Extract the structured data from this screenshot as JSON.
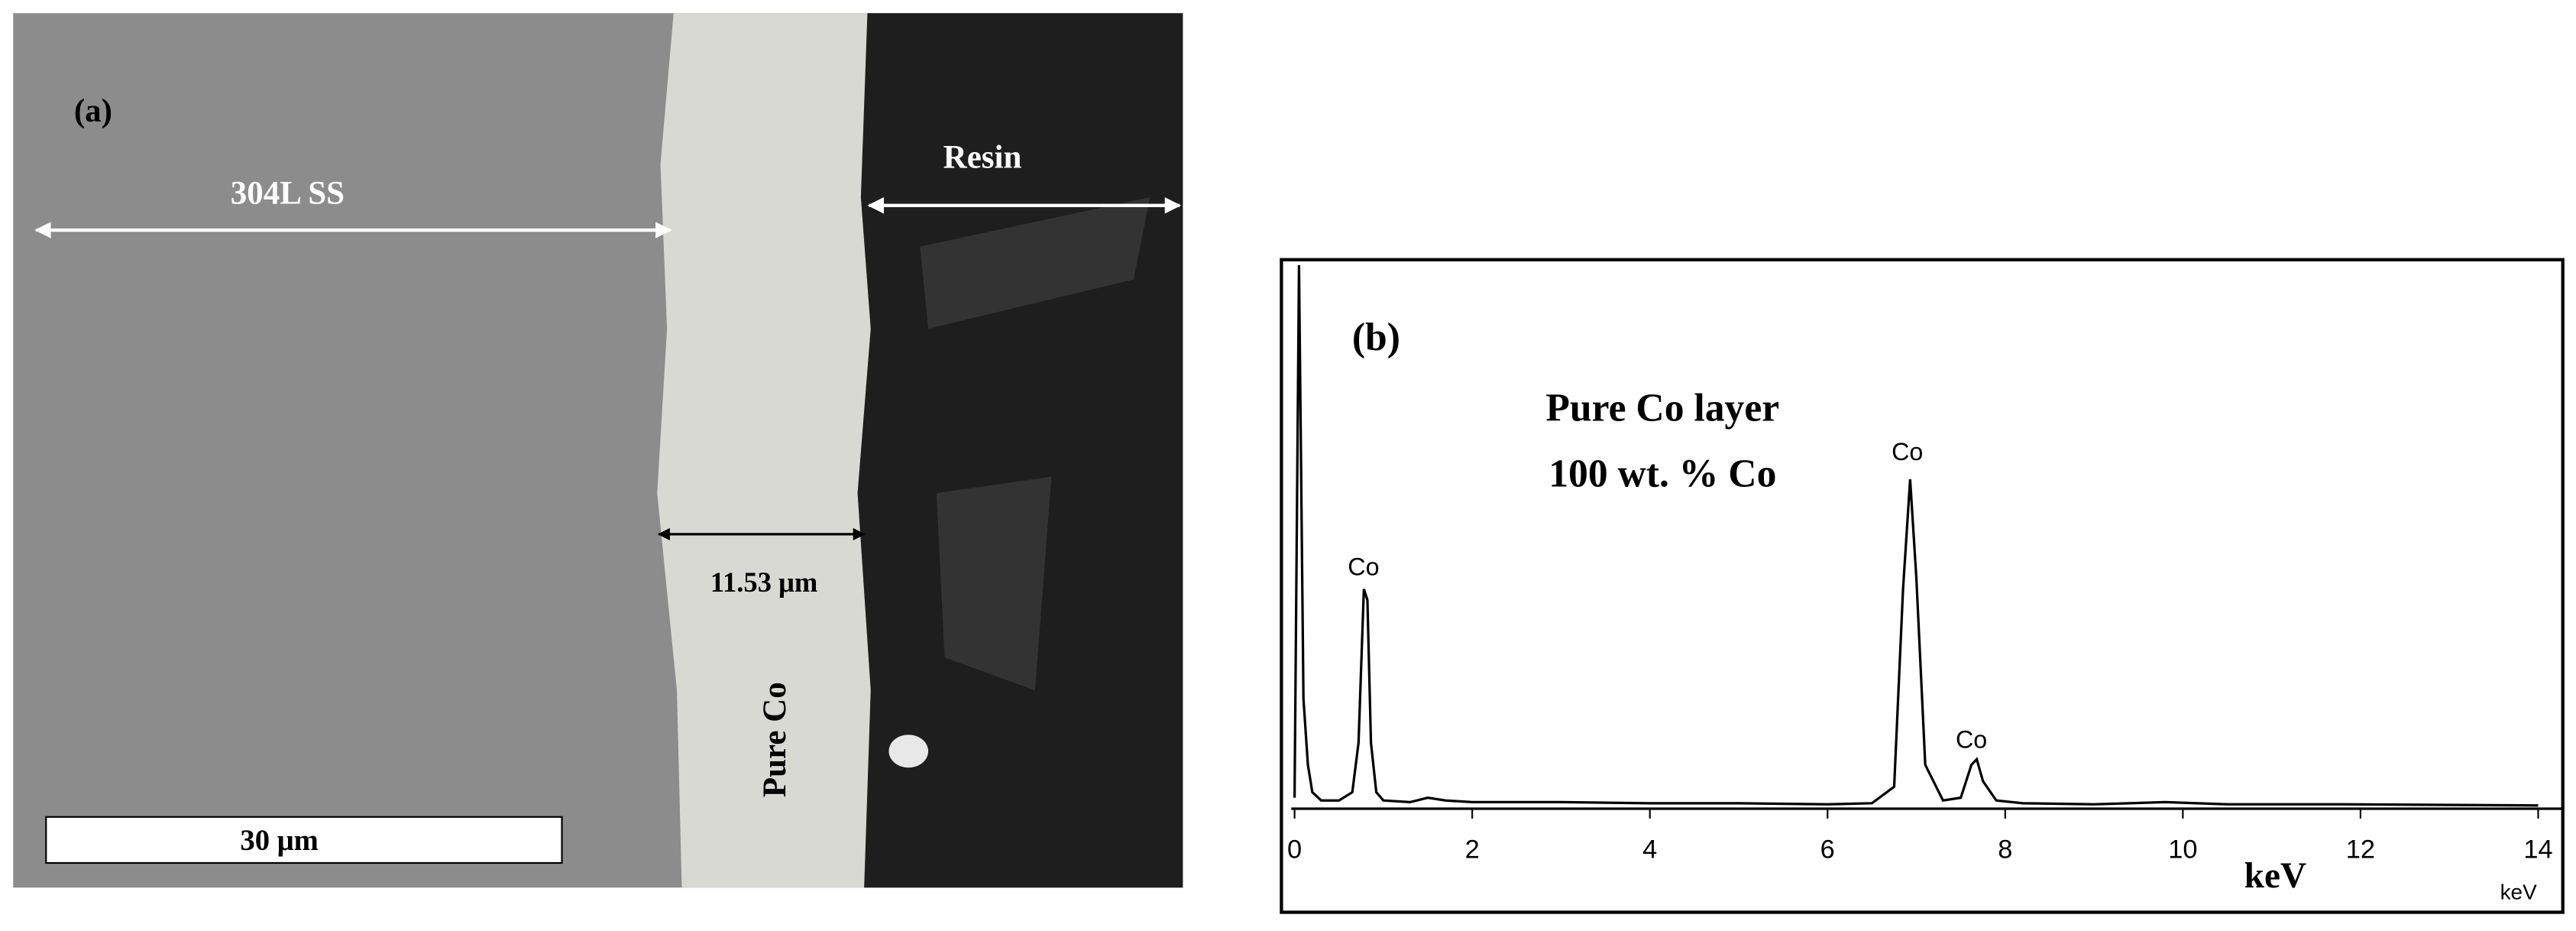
{
  "panel_a": {
    "label": "(a)",
    "substrate": "304L SS",
    "resin": "Resin",
    "thickness": "11.53 μm",
    "layer": "Pure Co",
    "scale_bar": "30 μm"
  },
  "chart_data": {
    "type": "line",
    "label": "(b)",
    "title": "Pure Co layer",
    "subtitle": "100 wt. % Co",
    "x_label": "keV",
    "x_unit": "keV",
    "annotations": [
      "Co",
      "Co",
      "Co"
    ],
    "x": [
      0,
      0.05,
      0.1,
      0.15,
      0.2,
      0.3,
      0.5,
      0.65,
      0.72,
      0.78,
      0.82,
      0.86,
      0.92,
      1.0,
      1.3,
      1.5,
      1.7,
      2,
      3,
      4,
      5,
      6,
      6.5,
      6.75,
      6.85,
      6.93,
      7.0,
      7.1,
      7.3,
      7.5,
      7.62,
      7.68,
      7.75,
      7.9,
      8.2,
      9,
      9.8,
      10.5,
      11.8,
      14
    ],
    "series": [
      {
        "color": "#000000",
        "values": [
          2,
          99,
          20,
          8,
          3,
          1.5,
          1.5,
          3,
          12,
          40,
          38,
          12,
          3,
          1.5,
          1.2,
          2,
          1.5,
          1.2,
          1.2,
          1,
          1,
          0.8,
          1,
          4,
          40,
          60,
          42,
          8,
          1.5,
          2,
          8,
          9,
          5,
          1.5,
          1,
          0.8,
          1.2,
          0.8,
          0.8,
          0.6
        ]
      }
    ],
    "xlim": [
      0,
      14
    ],
    "xticks": [
      0,
      2,
      4,
      6,
      8,
      10,
      12,
      14
    ],
    "ylim": [
      0,
      100
    ]
  }
}
